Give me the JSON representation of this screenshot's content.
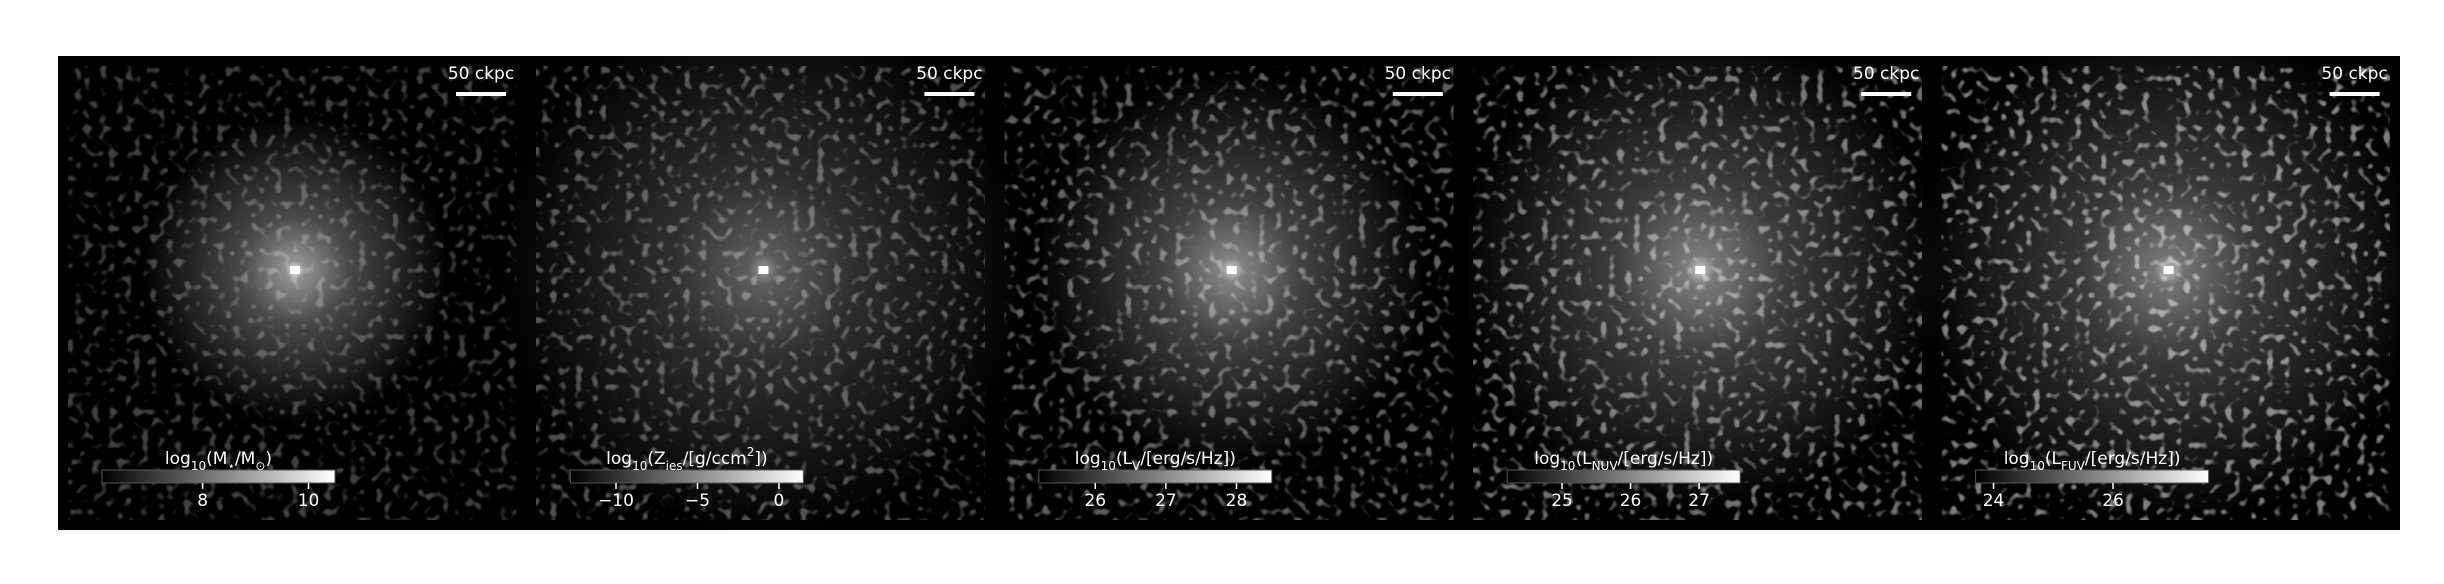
{
  "chart_data": [
    {
      "type": "image",
      "scalebar": "50 ckpc",
      "colorbar_label": [
        {
          "text": "log"
        },
        {
          "text": "10",
          "sub": true
        },
        {
          "text": "(M"
        },
        {
          "text": "⋆",
          "sub": true
        },
        {
          "text": "/M"
        },
        {
          "text": "⊙",
          "sub": true
        },
        {
          "text": ")"
        }
      ],
      "clim": [
        6.1,
        10.5
      ],
      "cticks": [
        8,
        10
      ]
    },
    {
      "type": "image",
      "scalebar": "50 ckpc",
      "colorbar_label": [
        {
          "text": "log"
        },
        {
          "text": "10",
          "sub": true
        },
        {
          "text": "(Z"
        },
        {
          "text": "ies",
          "sub": true
        },
        {
          "text": "/[g/ccm"
        },
        {
          "text": "2",
          "sup": true
        },
        {
          "text": "])"
        }
      ],
      "clim": [
        -12.8,
        1.5
      ],
      "cticks": [
        {
          "value": -10,
          "label": "−10"
        },
        {
          "value": -5,
          "label": "−5"
        },
        0
      ]
    },
    {
      "type": "image",
      "scalebar": "50 ckpc",
      "colorbar_label": [
        {
          "text": "log"
        },
        {
          "text": "10",
          "sub": true
        },
        {
          "text": "(L"
        },
        {
          "text": "V",
          "sub": true
        },
        {
          "text": "/[erg/s/Hz])"
        }
      ],
      "clim": [
        25.2,
        28.5
      ],
      "cticks": [
        26,
        27,
        28
      ]
    },
    {
      "type": "image",
      "scalebar": "50 ckpc",
      "colorbar_label": [
        {
          "text": "log"
        },
        {
          "text": "10",
          "sub": true
        },
        {
          "text": "(L"
        },
        {
          "text": "NUV",
          "sub": true
        },
        {
          "text": "/[erg/s/Hz])"
        }
      ],
      "clim": [
        24.2,
        27.6
      ],
      "cticks": [
        25,
        26,
        27
      ]
    },
    {
      "type": "image",
      "scalebar": "50 ckpc",
      "colorbar_label": [
        {
          "text": "log"
        },
        {
          "text": "10",
          "sub": true
        },
        {
          "text": "(L"
        },
        {
          "text": "FUV",
          "sub": true
        },
        {
          "text": "/[erg/s/Hz])"
        }
      ],
      "clim": [
        23.7,
        27.6
      ],
      "cticks": [
        24,
        26
      ]
    }
  ]
}
